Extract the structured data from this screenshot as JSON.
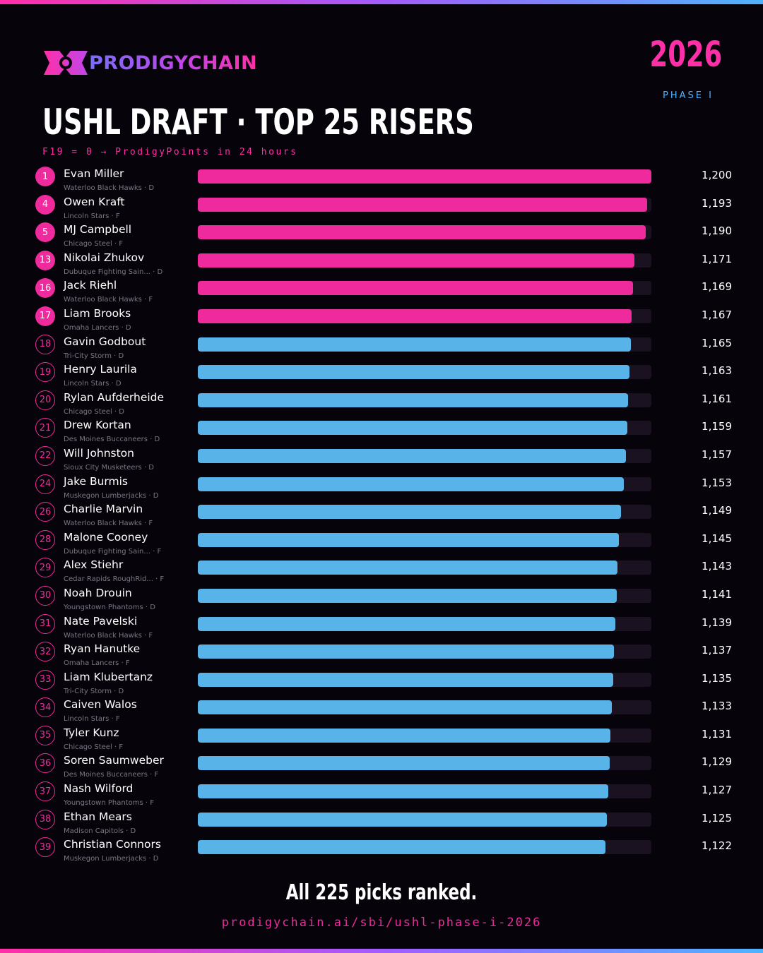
{
  "brand": {
    "name": "PRODIGYCHAIN",
    "logo_icon": "chain-link-icon",
    "gradient": [
      "#7a6cff",
      "#ff2fa8"
    ]
  },
  "header": {
    "year": "2026",
    "phase": "PHASE I",
    "title": "USHL DRAFT · TOP 25 RISERS",
    "subtitle": "F19 = 0 → ProdigyPoints in 24 hours"
  },
  "colors": {
    "accent_pink": "#ee2a9c",
    "accent_blue": "#58b4e8",
    "background": "#06040a"
  },
  "chart_data": {
    "type": "bar",
    "orientation": "horizontal",
    "xlim": [
      0,
      1200
    ],
    "ranks": [
      "1",
      "4",
      "5",
      "13",
      "16",
      "17",
      "18",
      "19",
      "20",
      "21",
      "22",
      "24",
      "26",
      "28",
      "29",
      "30",
      "31",
      "32",
      "33",
      "34",
      "35",
      "36",
      "37",
      "38",
      "39"
    ],
    "categories": [
      "Evan Miller",
      "Owen Kraft",
      "MJ Campbell",
      "Nikolai Zhukov",
      "Jack Riehl",
      "Liam Brooks",
      "Gavin Godbout",
      "Henry Laurila",
      "Rylan Aufderheide",
      "Drew Kortan",
      "Will Johnston",
      "Jake Burmis",
      "Charlie Marvin",
      "Malone Cooney",
      "Alex Stiehr",
      "Noah Drouin",
      "Nate Pavelski",
      "Ryan Hanutke",
      "Liam Klubertanz",
      "Caiven Walos",
      "Tyler Kunz",
      "Soren Saumweber",
      "Nash Wilford",
      "Ethan Mears",
      "Christian Connors"
    ],
    "meta": [
      "Waterloo Black Hawks · D",
      "Lincoln Stars · F",
      "Chicago Steel · F",
      "Dubuque Fighting Sain... · D",
      "Waterloo Black Hawks · F",
      "Omaha Lancers · D",
      "Tri-City Storm · D",
      "Lincoln Stars · D",
      "Chicago Steel · D",
      "Des Moines Buccaneers · D",
      "Sioux City Musketeers · D",
      "Muskegon Lumberjacks · D",
      "Waterloo Black Hawks · F",
      "Dubuque Fighting Sain... · F",
      "Cedar Rapids RoughRid... · F",
      "Youngstown Phantoms · D",
      "Waterloo Black Hawks · F",
      "Omaha Lancers · F",
      "Tri-City Storm · D",
      "Lincoln Stars · F",
      "Chicago Steel · F",
      "Des Moines Buccaneers · F",
      "Youngstown Phantoms · F",
      "Madison Capitols · D",
      "Muskegon Lumberjacks · D"
    ],
    "values": [
      1200,
      1193,
      1190,
      1171,
      1169,
      1167,
      1165,
      1163,
      1161,
      1159,
      1157,
      1153,
      1149,
      1145,
      1143,
      1141,
      1139,
      1137,
      1135,
      1133,
      1131,
      1129,
      1127,
      1125,
      1122
    ],
    "value_labels": [
      "1,200",
      "1,193",
      "1,190",
      "1,171",
      "1,169",
      "1,167",
      "1,165",
      "1,163",
      "1,161",
      "1,159",
      "1,157",
      "1,153",
      "1,149",
      "1,145",
      "1,143",
      "1,141",
      "1,139",
      "1,137",
      "1,135",
      "1,133",
      "1,131",
      "1,129",
      "1,127",
      "1,125",
      "1,122"
    ],
    "highlight_count": 6,
    "title": "USHL DRAFT · TOP 25 RISERS",
    "xlabel": "",
    "ylabel": "",
    "grid": false,
    "legend": "none"
  },
  "footer": {
    "headline": "All 225 picks ranked.",
    "url": "prodigychain.ai/sbi/ushl-phase-i-2026"
  }
}
